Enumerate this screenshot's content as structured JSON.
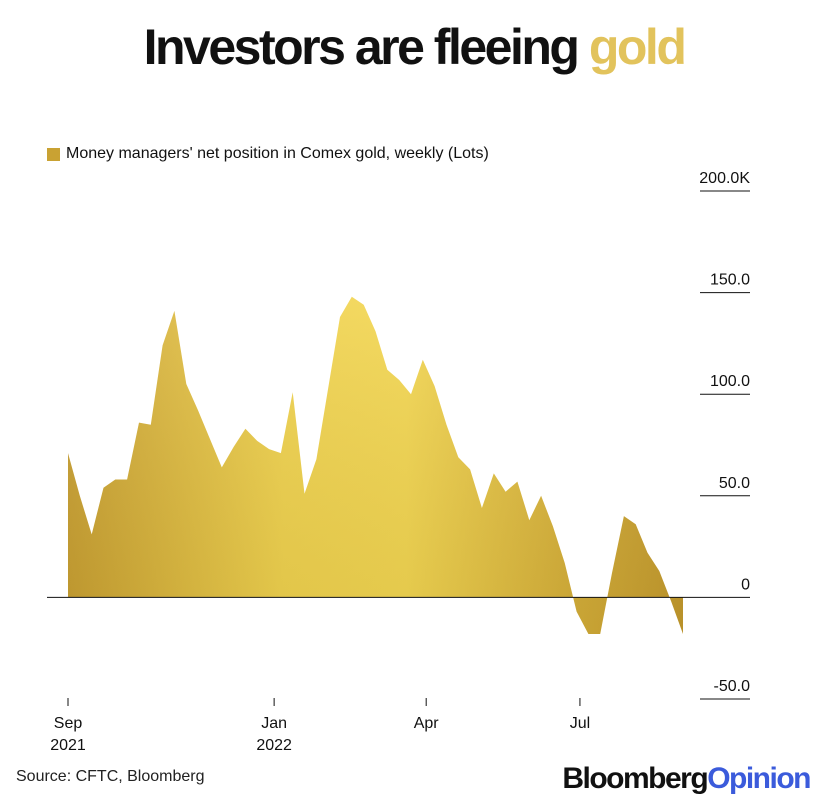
{
  "title": {
    "main": "Investors are fleeing",
    "highlight": "gold"
  },
  "legend": {
    "label": "Money managers' net position in Comex gold, weekly (Lots)"
  },
  "source": "Source: CFTC, Bloomberg",
  "brand": {
    "part1": "Bloomberg",
    "part2": "Opinion"
  },
  "colors": {
    "gold_fill": "#d4af37",
    "gold_highlight": "#f2d64e",
    "accent": "#e2c35c",
    "brand_blue": "#3b5bdb",
    "axis": "#111111"
  },
  "chart_data": {
    "type": "area",
    "title": "Investors are fleeing gold",
    "ylabel": "",
    "xlabel": "",
    "ylim": [
      -50,
      200
    ],
    "yticks": [
      {
        "value": 200,
        "label": "200.0K"
      },
      {
        "value": 150,
        "label": "150.0"
      },
      {
        "value": 100,
        "label": "100.0"
      },
      {
        "value": 50,
        "label": "50.0"
      },
      {
        "value": 0,
        "label": "0"
      },
      {
        "value": -50,
        "label": "-50.0"
      }
    ],
    "xticks": [
      {
        "date": "2021-09-01",
        "line1": "Sep",
        "line2": "2021"
      },
      {
        "date": "2022-01-01",
        "line1": "Jan",
        "line2": "2022"
      },
      {
        "date": "2022-04-01",
        "line1": "Apr",
        "line2": ""
      },
      {
        "date": "2022-07-01",
        "line1": "Jul",
        "line2": ""
      }
    ],
    "series": [
      {
        "values": [
          [
            "2021-09-01",
            71
          ],
          [
            "2021-09-08",
            50
          ],
          [
            "2021-09-15",
            31
          ],
          [
            "2021-09-22",
            54
          ],
          [
            "2021-09-29",
            58
          ],
          [
            "2021-10-06",
            58
          ],
          [
            "2021-10-13",
            86
          ],
          [
            "2021-10-20",
            85
          ],
          [
            "2021-10-27",
            124
          ],
          [
            "2021-11-03",
            141
          ],
          [
            "2021-11-10",
            105
          ],
          [
            "2021-11-17",
            92
          ],
          [
            "2021-11-24",
            78
          ],
          [
            "2021-12-01",
            64
          ],
          [
            "2021-12-08",
            74
          ],
          [
            "2021-12-15",
            83
          ],
          [
            "2021-12-22",
            77
          ],
          [
            "2021-12-29",
            73
          ],
          [
            "2022-01-05",
            71
          ],
          [
            "2022-01-12",
            101
          ],
          [
            "2022-01-19",
            51
          ],
          [
            "2022-01-26",
            68
          ],
          [
            "2022-02-02",
            103
          ],
          [
            "2022-02-09",
            138
          ],
          [
            "2022-02-16",
            148
          ],
          [
            "2022-02-23",
            144
          ],
          [
            "2022-03-02",
            131
          ],
          [
            "2022-03-09",
            112
          ],
          [
            "2022-03-16",
            107
          ],
          [
            "2022-03-23",
            100
          ],
          [
            "2022-03-30",
            117
          ],
          [
            "2022-04-06",
            104
          ],
          [
            "2022-04-13",
            85
          ],
          [
            "2022-04-20",
            69
          ],
          [
            "2022-04-27",
            63
          ],
          [
            "2022-05-04",
            44
          ],
          [
            "2022-05-11",
            61
          ],
          [
            "2022-05-18",
            52
          ],
          [
            "2022-05-25",
            57
          ],
          [
            "2022-06-01",
            38
          ],
          [
            "2022-06-08",
            50
          ],
          [
            "2022-06-15",
            35
          ],
          [
            "2022-06-22",
            17
          ],
          [
            "2022-06-29",
            -7
          ],
          [
            "2022-07-06",
            -18
          ],
          [
            "2022-07-13",
            -18
          ],
          [
            "2022-07-20",
            12
          ],
          [
            "2022-07-27",
            40
          ],
          [
            "2022-08-03",
            36
          ],
          [
            "2022-08-10",
            22
          ],
          [
            "2022-08-17",
            13
          ],
          [
            "2022-08-24",
            -2
          ],
          [
            "2022-08-31",
            -18
          ]
        ]
      }
    ],
    "grid": false,
    "legend_position": "top-left"
  }
}
